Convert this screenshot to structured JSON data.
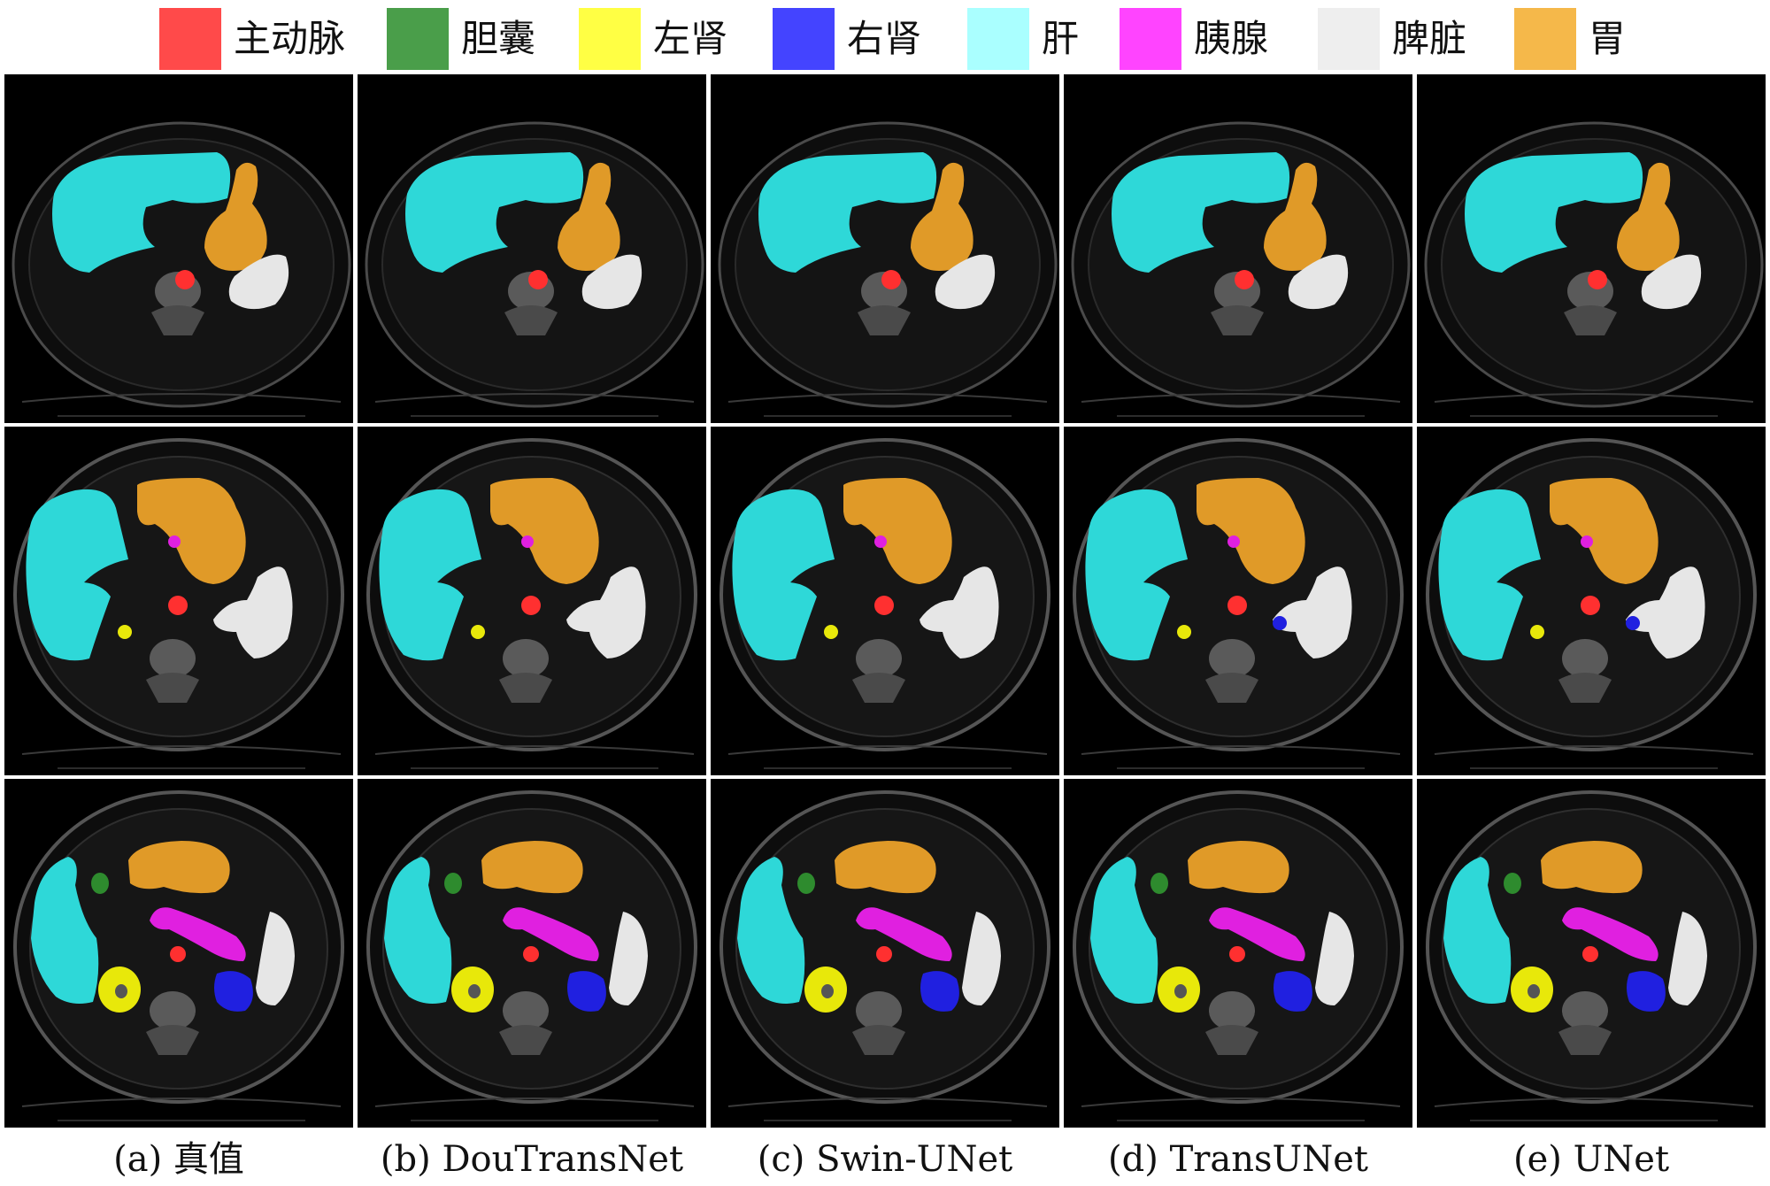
{
  "legend": [
    {
      "label": "主动脉",
      "color": "#ff4a4a"
    },
    {
      "label": "胆囊",
      "color": "#4a9e4a"
    },
    {
      "label": "左肾",
      "color": "#ffff44"
    },
    {
      "label": "右肾",
      "color": "#4444ff"
    },
    {
      "label": "肝",
      "color": "#aaffff"
    },
    {
      "label": "胰腺",
      "color": "#ff44ff"
    },
    {
      "label": "脾脏",
      "color": "#eeeeee"
    },
    {
      "label": "胃",
      "color": "#f5b84a"
    }
  ],
  "columns": [
    {
      "caption": "(a)  真值"
    },
    {
      "caption": "(b) DouTransNet"
    },
    {
      "caption": "(c) Swin-UNet"
    },
    {
      "caption": "(d) TransUNet"
    },
    {
      "caption": "(e) UNet"
    }
  ],
  "overlay_colors": {
    "aorta": "#ff3030",
    "gallbladder": "#2e8b2e",
    "left_kidney": "#e8e80a",
    "right_kidney": "#2020e0",
    "liver": "#2ed8d8",
    "pancreas": "#e020e0",
    "spleen": "#e6e6e6",
    "stomach": "#e09a28",
    "stomach_upper": "#f0b040"
  }
}
